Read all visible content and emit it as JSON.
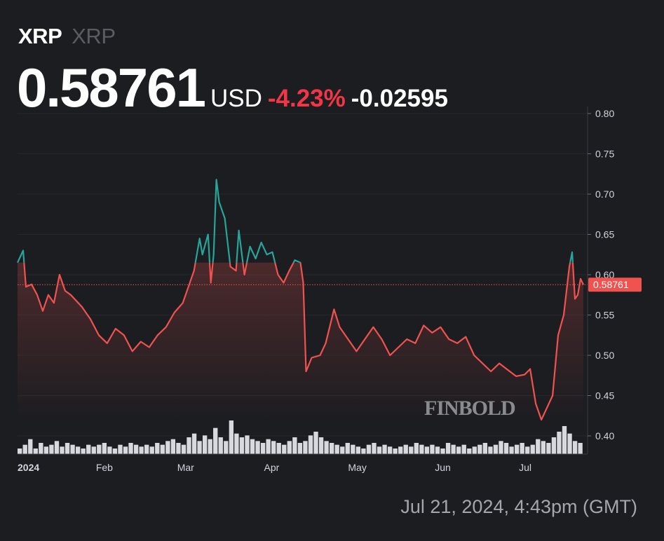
{
  "header": {
    "symbol": "XRP",
    "symbol_sub": "XRP",
    "price": "0.58761",
    "currency": "USD",
    "change_pct": "-4.23%",
    "change_abs": "-0.02595"
  },
  "footer": {
    "timestamp": "Jul 21, 2024, 4:43pm (GMT)"
  },
  "watermark": "FINBOLD",
  "colors": {
    "up": "#26a69a",
    "down": "#f0534f",
    "negative_text": "#f23645",
    "background": "#1c1d21"
  },
  "chart_data": {
    "type": "line",
    "title": "",
    "xlabel": "",
    "ylabel": "",
    "ylim": [
      0.4,
      0.8
    ],
    "y_ticks": [
      "0.80",
      "0.75",
      "0.70",
      "0.65",
      "0.60",
      "0.55",
      "0.50",
      "0.45",
      "0.40"
    ],
    "x_ticks": [
      {
        "label": "2024",
        "date": "2024-01-01"
      },
      {
        "label": "Feb",
        "date": "2024-02-01"
      },
      {
        "label": "Mar",
        "date": "2024-03-01"
      },
      {
        "label": "Apr",
        "date": "2024-04-01"
      },
      {
        "label": "May",
        "date": "2024-05-01"
      },
      {
        "label": "Jun",
        "date": "2024-06-01"
      },
      {
        "label": "Jul",
        "date": "2024-07-01"
      }
    ],
    "x_range": [
      "2024-01-01",
      "2024-07-21"
    ],
    "baseline": 0.615,
    "last_price_label": "0.58761",
    "last_price": 0.58761,
    "grid": true,
    "points": [
      [
        "2024-01-01",
        0.615
      ],
      [
        "2024-01-03",
        0.63
      ],
      [
        "2024-01-04",
        0.585
      ],
      [
        "2024-01-06",
        0.588
      ],
      [
        "2024-01-08",
        0.575
      ],
      [
        "2024-01-10",
        0.555
      ],
      [
        "2024-01-12",
        0.575
      ],
      [
        "2024-01-14",
        0.565
      ],
      [
        "2024-01-16",
        0.6
      ],
      [
        "2024-01-18",
        0.58
      ],
      [
        "2024-01-20",
        0.575
      ],
      [
        "2024-01-24",
        0.56
      ],
      [
        "2024-01-27",
        0.545
      ],
      [
        "2024-01-30",
        0.525
      ],
      [
        "2024-02-02",
        0.515
      ],
      [
        "2024-02-05",
        0.533
      ],
      [
        "2024-02-08",
        0.525
      ],
      [
        "2024-02-11",
        0.505
      ],
      [
        "2024-02-14",
        0.517
      ],
      [
        "2024-02-17",
        0.51
      ],
      [
        "2024-02-20",
        0.525
      ],
      [
        "2024-02-23",
        0.535
      ],
      [
        "2024-02-26",
        0.553
      ],
      [
        "2024-02-29",
        0.565
      ],
      [
        "2024-03-02",
        0.585
      ],
      [
        "2024-03-04",
        0.605
      ],
      [
        "2024-03-06",
        0.645
      ],
      [
        "2024-03-07",
        0.625
      ],
      [
        "2024-03-09",
        0.65
      ],
      [
        "2024-03-10",
        0.59
      ],
      [
        "2024-03-11",
        0.625
      ],
      [
        "2024-03-12",
        0.718
      ],
      [
        "2024-03-13",
        0.69
      ],
      [
        "2024-03-15",
        0.67
      ],
      [
        "2024-03-17",
        0.61
      ],
      [
        "2024-03-19",
        0.605
      ],
      [
        "2024-03-20",
        0.655
      ],
      [
        "2024-03-22",
        0.6
      ],
      [
        "2024-03-24",
        0.635
      ],
      [
        "2024-03-26",
        0.62
      ],
      [
        "2024-03-28",
        0.64
      ],
      [
        "2024-03-30",
        0.625
      ],
      [
        "2024-04-01",
        0.628
      ],
      [
        "2024-04-03",
        0.6
      ],
      [
        "2024-04-05",
        0.59
      ],
      [
        "2024-04-07",
        0.605
      ],
      [
        "2024-04-09",
        0.618
      ],
      [
        "2024-04-11",
        0.615
      ],
      [
        "2024-04-12",
        0.59
      ],
      [
        "2024-04-13",
        0.48
      ],
      [
        "2024-04-15",
        0.497
      ],
      [
        "2024-04-18",
        0.5
      ],
      [
        "2024-04-20",
        0.515
      ],
      [
        "2024-04-23",
        0.557
      ],
      [
        "2024-04-25",
        0.535
      ],
      [
        "2024-04-28",
        0.52
      ],
      [
        "2024-05-01",
        0.505
      ],
      [
        "2024-05-04",
        0.52
      ],
      [
        "2024-05-07",
        0.535
      ],
      [
        "2024-05-10",
        0.52
      ],
      [
        "2024-05-13",
        0.5
      ],
      [
        "2024-05-16",
        0.51
      ],
      [
        "2024-05-19",
        0.52
      ],
      [
        "2024-05-22",
        0.515
      ],
      [
        "2024-05-25",
        0.537
      ],
      [
        "2024-05-28",
        0.528
      ],
      [
        "2024-05-31",
        0.535
      ],
      [
        "2024-06-03",
        0.52
      ],
      [
        "2024-06-06",
        0.515
      ],
      [
        "2024-06-09",
        0.523
      ],
      [
        "2024-06-12",
        0.5
      ],
      [
        "2024-06-15",
        0.49
      ],
      [
        "2024-06-18",
        0.48
      ],
      [
        "2024-06-21",
        0.49
      ],
      [
        "2024-06-24",
        0.482
      ],
      [
        "2024-06-27",
        0.474
      ],
      [
        "2024-06-30",
        0.476
      ],
      [
        "2024-07-02",
        0.483
      ],
      [
        "2024-07-04",
        0.44
      ],
      [
        "2024-07-06",
        0.42
      ],
      [
        "2024-07-08",
        0.435
      ],
      [
        "2024-07-10",
        0.45
      ],
      [
        "2024-07-12",
        0.525
      ],
      [
        "2024-07-14",
        0.55
      ],
      [
        "2024-07-16",
        0.61
      ],
      [
        "2024-07-17",
        0.628
      ],
      [
        "2024-07-18",
        0.57
      ],
      [
        "2024-07-19",
        0.575
      ],
      [
        "2024-07-20",
        0.595
      ],
      [
        "2024-07-21",
        0.58761
      ]
    ],
    "volume_relative": [
      3,
      5,
      8,
      3,
      6,
      4,
      5,
      7,
      4,
      6,
      5,
      4,
      3,
      5,
      4,
      5,
      6,
      4,
      3,
      5,
      4,
      6,
      5,
      4,
      5,
      4,
      6,
      5,
      7,
      8,
      6,
      5,
      9,
      11,
      7,
      10,
      8,
      14,
      9,
      7,
      18,
      11,
      9,
      10,
      8,
      7,
      6,
      8,
      7,
      6,
      5,
      7,
      9,
      6,
      7,
      10,
      12,
      9,
      7,
      6,
      5,
      4,
      6,
      5,
      4,
      3,
      5,
      6,
      4,
      5,
      4,
      3,
      4,
      5,
      4,
      6,
      5,
      4,
      5,
      4,
      3,
      6,
      5,
      4,
      5,
      3,
      4,
      5,
      6,
      4,
      5,
      7,
      6,
      4,
      5,
      6,
      4,
      5,
      8,
      7,
      6,
      9,
      12,
      15,
      11,
      7,
      6
    ]
  }
}
